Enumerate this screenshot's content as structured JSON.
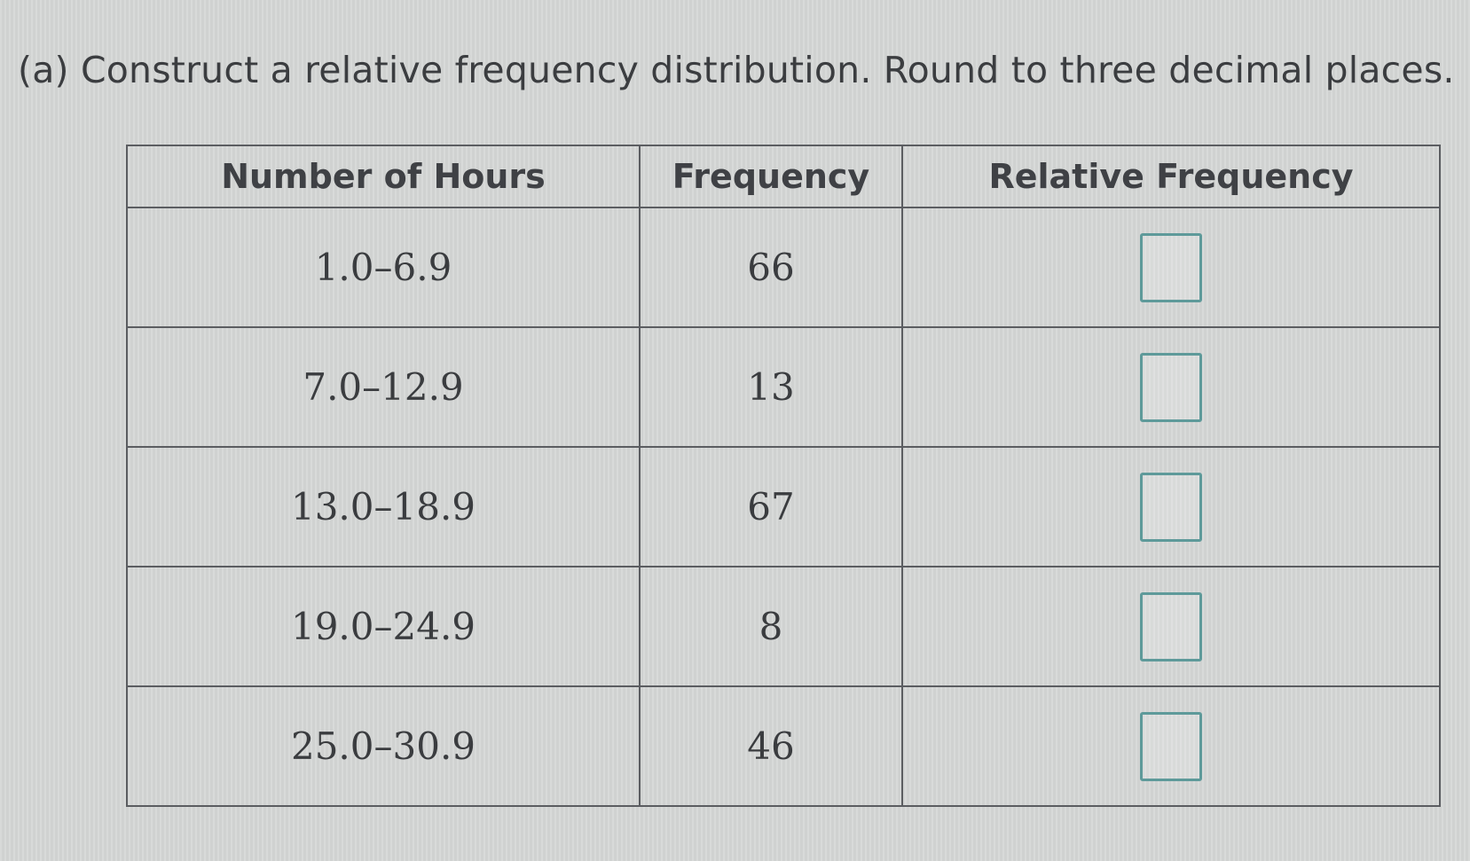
{
  "question": {
    "text": "(a) Construct a relative frequency distribution. Round to three decimal places."
  },
  "table": {
    "headers": [
      "Number of Hours",
      "Frequency",
      "Relative Frequency"
    ],
    "rows": [
      {
        "hours": "1.0–6.9",
        "frequency": "66",
        "relative_frequency": ""
      },
      {
        "hours": "7.0–12.9",
        "frequency": "13",
        "relative_frequency": ""
      },
      {
        "hours": "13.0–18.9",
        "frequency": "67",
        "relative_frequency": ""
      },
      {
        "hours": "19.0–24.9",
        "frequency": "8",
        "relative_frequency": ""
      },
      {
        "hours": "25.0–30.9",
        "frequency": "46",
        "relative_frequency": ""
      }
    ]
  },
  "colors": {
    "answer_box_border": "#5e9a9a",
    "table_border": "#5b5d61",
    "text": "#3b3d40"
  }
}
